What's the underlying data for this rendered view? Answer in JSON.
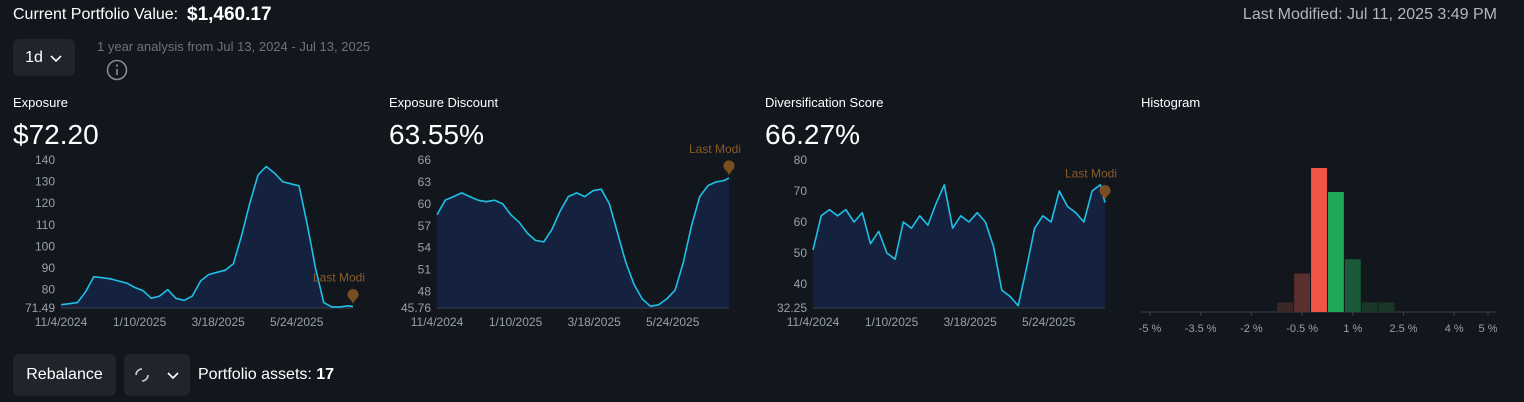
{
  "header": {
    "label": "Current Portfolio Value:",
    "value": "$1,460.17",
    "last_modified": "Last Modified: Jul 11, 2025 3:49 PM",
    "period": "1d",
    "analysis_note": "1 year analysis from Jul 13, 2024 - Jul 13, 2025"
  },
  "footer": {
    "button": "Rebalance",
    "assets_label": "Portfolio assets:",
    "assets_count": 17
  },
  "chart_data": [
    {
      "type": "line",
      "title": "Exposure",
      "subtitle": "$72.20",
      "annotation": "Last Modi",
      "color": "#1fc0e6",
      "area_color": "#14223f",
      "annotation_color": "#8a5b22",
      "x": [
        "11/4/2024",
        "11/11/2024",
        "11/18/2024",
        "11/25/2024",
        "12/2/2024",
        "12/9/2024",
        "12/16/2024",
        "12/23/2024",
        "12/30/2024",
        "1/6/2025",
        "1/13/2025",
        "1/20/2025",
        "1/27/2025",
        "2/3/2025",
        "2/10/2025",
        "2/17/2025",
        "2/24/2025",
        "3/3/2025",
        "3/10/2025",
        "3/17/2025",
        "3/24/2025",
        "3/31/2025",
        "4/7/2025",
        "4/14/2025",
        "4/21/2025",
        "4/28/2025",
        "5/5/2025",
        "5/12/2025",
        "5/19/2025",
        "5/26/2025",
        "6/2/2025",
        "6/9/2025",
        "6/16/2025",
        "6/23/2025",
        "6/30/2025",
        "7/7/2025",
        "7/11/2025"
      ],
      "values": [
        73,
        73.5,
        74,
        79,
        86,
        85.5,
        85,
        84,
        83,
        81,
        79.5,
        76,
        77,
        80,
        76,
        75,
        77,
        84,
        87,
        88,
        89,
        92,
        105,
        120,
        133,
        137,
        134,
        130,
        129,
        128,
        110,
        90,
        74,
        72,
        72,
        72.5,
        72.2
      ],
      "xlim": [
        "11/4/2024",
        "7/11/2025"
      ],
      "xticks": [
        "11/4/2024",
        "1/10/2025",
        "3/18/2025",
        "5/24/2025"
      ],
      "ylim": [
        71.49,
        140
      ],
      "yticks": [
        71.49,
        80,
        90,
        100,
        110,
        120,
        130,
        140
      ]
    },
    {
      "type": "line",
      "title": "Exposure Discount",
      "subtitle": "63.55%",
      "annotation": "Last Modi",
      "color": "#1fc0e6",
      "area_color": "#14223f",
      "annotation_color": "#8a5b22",
      "x": [
        "11/4/2024",
        "11/11/2024",
        "11/18/2024",
        "11/25/2024",
        "12/2/2024",
        "12/9/2024",
        "12/16/2024",
        "12/23/2024",
        "12/30/2024",
        "1/6/2025",
        "1/13/2025",
        "1/20/2025",
        "1/27/2025",
        "2/3/2025",
        "2/10/2025",
        "2/17/2025",
        "2/24/2025",
        "3/3/2025",
        "3/10/2025",
        "3/17/2025",
        "3/24/2025",
        "3/31/2025",
        "4/7/2025",
        "4/14/2025",
        "4/21/2025",
        "4/28/2025",
        "5/5/2025",
        "5/12/2025",
        "5/19/2025",
        "5/26/2025",
        "6/2/2025",
        "6/9/2025",
        "6/16/2025",
        "6/23/2025",
        "6/30/2025",
        "7/7/2025",
        "7/11/2025"
      ],
      "values": [
        58.5,
        60.5,
        61,
        61.5,
        61,
        60.5,
        60.3,
        60.5,
        60,
        58.5,
        57.5,
        56,
        55,
        54.8,
        56.5,
        59,
        61,
        61.5,
        61,
        61.8,
        62,
        60,
        56,
        52,
        49,
        47,
        46,
        46.2,
        47,
        48.2,
        52,
        57,
        61,
        62.5,
        63,
        63.2,
        63.55
      ],
      "xlim": [
        "11/4/2024",
        "7/11/2025"
      ],
      "xticks": [
        "11/4/2024",
        "1/10/2025",
        "3/18/2025",
        "5/24/2025"
      ],
      "ylim": [
        45.76,
        66
      ],
      "yticks": [
        45.76,
        48,
        51,
        54,
        57,
        60,
        63,
        66
      ]
    },
    {
      "type": "line",
      "title": "Diversification Score",
      "subtitle": "66.27%",
      "annotation": "Last Modi",
      "color": "#1fc0e6",
      "area_color": "#14223f",
      "annotation_color": "#8a5b22",
      "x": [
        "11/4/2024",
        "11/11/2024",
        "11/18/2024",
        "11/25/2024",
        "12/2/2024",
        "12/9/2024",
        "12/16/2024",
        "12/23/2024",
        "12/30/2024",
        "1/6/2025",
        "1/13/2025",
        "1/20/2025",
        "1/27/2025",
        "2/3/2025",
        "2/10/2025",
        "2/17/2025",
        "2/24/2025",
        "3/3/2025",
        "3/10/2025",
        "3/17/2025",
        "3/24/2025",
        "3/31/2025",
        "4/7/2025",
        "4/14/2025",
        "4/21/2025",
        "4/28/2025",
        "5/5/2025",
        "5/12/2025",
        "5/19/2025",
        "5/26/2025",
        "6/2/2025",
        "6/9/2025",
        "6/16/2025",
        "6/23/2025",
        "6/30/2025",
        "7/7/2025",
        "7/11/2025"
      ],
      "values": [
        51,
        62,
        64,
        62,
        64,
        60,
        63,
        53,
        57,
        50,
        48,
        60,
        58,
        62,
        59,
        66,
        72,
        58,
        62,
        60,
        63,
        60,
        52,
        38,
        36,
        33,
        45,
        58,
        62,
        60,
        70,
        65,
        63,
        60,
        70,
        72,
        66.27
      ],
      "xlim": [
        "11/4/2024",
        "7/11/2025"
      ],
      "xticks": [
        "11/4/2024",
        "1/10/2025",
        "3/18/2025",
        "5/24/2025"
      ],
      "ylim": [
        32.25,
        80
      ],
      "yticks": [
        32.25,
        40,
        50,
        60,
        70,
        80
      ]
    },
    {
      "type": "histogram",
      "title": "Histogram",
      "bins": [
        -1.25,
        -0.75,
        -0.25,
        0.25,
        0.75,
        1.25,
        1.75,
        2.25
      ],
      "values": [
        2,
        8,
        30,
        25,
        11,
        2,
        2
      ],
      "colors": [
        "#3a2527",
        "#5a2f2f",
        "#f05545",
        "#1fa855",
        "#1b5a38",
        "#1a3628",
        "#1a3628"
      ],
      "xlim": [
        -5,
        5
      ],
      "xticks": [
        {
          "value": -5,
          "label": "-5 %"
        },
        {
          "value": -3.5,
          "label": "-3.5 %"
        },
        {
          "value": -2,
          "label": "-2 %"
        },
        {
          "value": -0.5,
          "label": "-0.5 %"
        },
        {
          "value": 1,
          "label": "1 %"
        },
        {
          "value": 2.5,
          "label": "2.5 %"
        },
        {
          "value": 4,
          "label": "4 %"
        },
        {
          "value": 5,
          "label": "5 %"
        }
      ]
    }
  ]
}
